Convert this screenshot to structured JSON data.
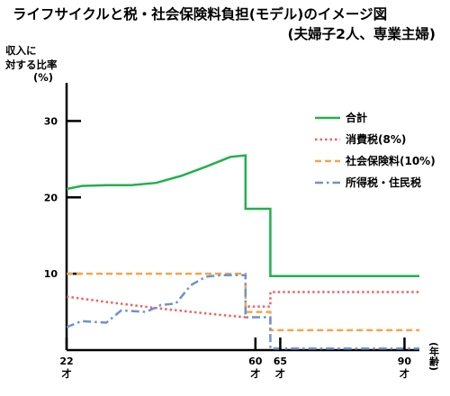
{
  "chart_data": {
    "type": "line",
    "title": "ライフサイクルと税・社会保険料負担(モデル)のイメージ図",
    "subtitle": "(夫婦子2人、専業主婦)",
    "ylabel": [
      "収入に",
      "対する比率",
      "(%)"
    ],
    "xlabel": "(年齢)",
    "ylim": [
      0,
      35
    ],
    "xlim": [
      22,
      93
    ],
    "y_ticks": [
      10,
      20,
      30
    ],
    "x_ticks": [
      {
        "value": 22,
        "label": "22",
        "unit": "才"
      },
      {
        "value": 60,
        "label": "60",
        "unit": "才"
      },
      {
        "value": 65,
        "label": "65",
        "unit": "才"
      },
      {
        "value": 90,
        "label": "90",
        "unit": "才"
      }
    ],
    "legend_position": "right",
    "series": [
      {
        "name": "合計",
        "color": "#22b14c",
        "style": "solid",
        "points": [
          [
            22,
            21.1
          ],
          [
            25,
            21.5
          ],
          [
            30,
            21.6
          ],
          [
            35,
            21.6
          ],
          [
            40,
            21.9
          ],
          [
            45,
            22.8
          ],
          [
            50,
            24.0
          ],
          [
            55,
            25.3
          ],
          [
            58,
            25.5
          ],
          [
            58,
            18.5
          ],
          [
            63,
            18.5
          ],
          [
            63,
            9.7
          ],
          [
            93,
            9.7
          ]
        ]
      },
      {
        "name": "消費税(8%)",
        "color": "#f06262",
        "style": "dotted",
        "points": [
          [
            22,
            7.0
          ],
          [
            30,
            6.3
          ],
          [
            40,
            5.5
          ],
          [
            50,
            4.8
          ],
          [
            58,
            4.3
          ],
          [
            58,
            5.7
          ],
          [
            63,
            5.7
          ],
          [
            63,
            7.6
          ],
          [
            93,
            7.6
          ]
        ]
      },
      {
        "name": "社会保険料(10%)",
        "color": "#f5a54a",
        "style": "dashed",
        "points": [
          [
            22,
            10.0
          ],
          [
            58,
            10.0
          ],
          [
            58,
            5.0
          ],
          [
            63,
            5.0
          ],
          [
            63,
            2.6
          ],
          [
            93,
            2.6
          ]
        ]
      },
      {
        "name": "所得税・住民税",
        "color": "#6b93cf",
        "style": "dashdot",
        "points": [
          [
            22,
            3.0
          ],
          [
            25,
            3.8
          ],
          [
            30,
            3.6
          ],
          [
            33,
            5.2
          ],
          [
            38,
            5.0
          ],
          [
            41,
            5.9
          ],
          [
            44,
            6.1
          ],
          [
            47,
            8.5
          ],
          [
            50,
            9.6
          ],
          [
            53,
            9.8
          ],
          [
            57,
            9.8
          ],
          [
            58,
            9.8
          ],
          [
            58,
            4.3
          ],
          [
            63,
            4.3
          ],
          [
            63,
            0.2
          ],
          [
            93,
            0.2
          ]
        ]
      }
    ]
  }
}
